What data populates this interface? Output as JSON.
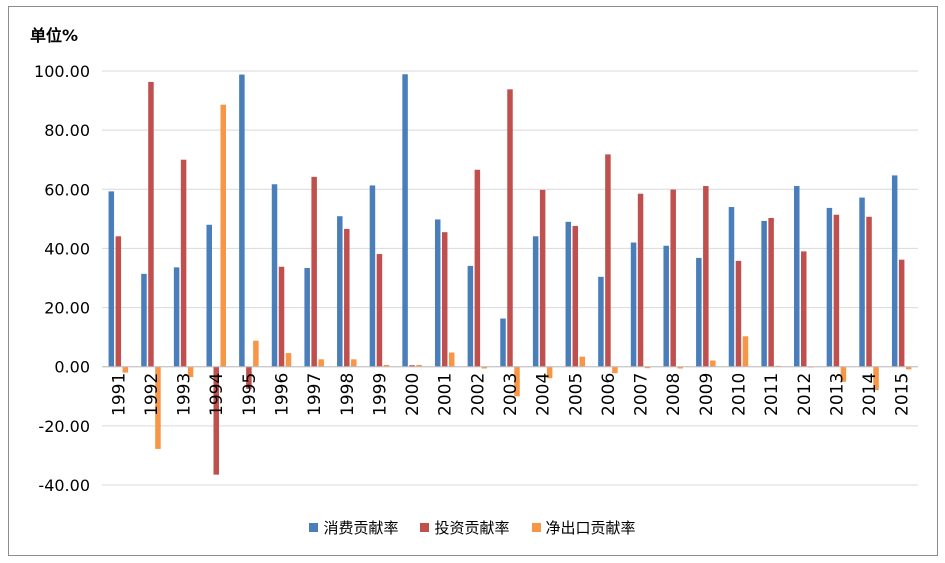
{
  "chart_data": {
    "type": "bar",
    "unit_label": "单位%",
    "categories": [
      "1991",
      "1992",
      "1993",
      "1994",
      "1995",
      "1996",
      "1997",
      "1998",
      "1999",
      "2000",
      "2001",
      "2002",
      "2003",
      "2004",
      "2005",
      "2006",
      "2007",
      "2008",
      "2009",
      "2010",
      "2011",
      "2012",
      "2013",
      "2014",
      "2015"
    ],
    "series": [
      {
        "name": "消费贡献率",
        "color": "#4a7ebb",
        "values": [
          59.3,
          31.4,
          33.6,
          48.0,
          98.8,
          61.7,
          33.4,
          50.9,
          61.3,
          98.9,
          49.8,
          34.1,
          16.3,
          44.1,
          49.0,
          30.4,
          42.0,
          40.9,
          36.8,
          54.0,
          49.3,
          61.1,
          53.7,
          57.2,
          64.7
        ]
      },
      {
        "name": "投资贡献率",
        "color": "#c0504d",
        "values": [
          44.1,
          96.3,
          70.0,
          -36.5,
          -7.5,
          33.8,
          64.2,
          46.6,
          38.1,
          0.5,
          45.5,
          66.6,
          93.8,
          59.8,
          47.6,
          71.8,
          58.5,
          59.9,
          61.1,
          35.8,
          50.3,
          39.0,
          51.4,
          50.7,
          36.2
        ]
      },
      {
        "name": "净出口贡献率",
        "color": "#f79646",
        "values": [
          -2.0,
          -27.8,
          -3.5,
          88.6,
          8.8,
          4.6,
          2.5,
          2.5,
          0.6,
          0.6,
          4.8,
          -0.6,
          -10.0,
          -3.9,
          3.4,
          -2.2,
          -0.5,
          -0.6,
          2.1,
          10.3,
          0.3,
          0.0,
          -5.1,
          -7.9,
          -0.9
        ]
      }
    ],
    "yticks": [
      "100.00",
      "80.00",
      "60.00",
      "40.00",
      "20.00",
      "0.00",
      "-20.00",
      "-40.00"
    ],
    "ylim": [
      -40,
      100
    ],
    "grid": true,
    "legend_position": "bottom"
  }
}
